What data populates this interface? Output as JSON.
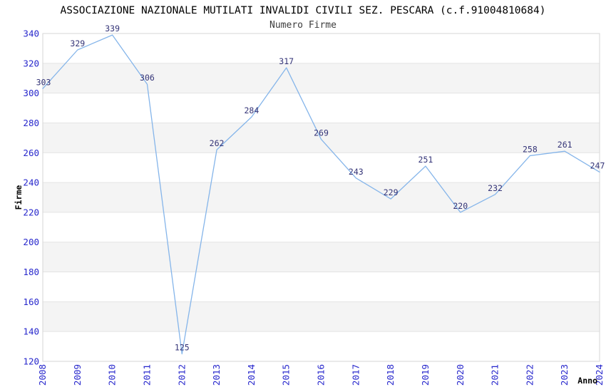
{
  "chart_data": {
    "type": "line",
    "title": "ASSOCIAZIONE NAZIONALE MUTILATI INVALIDI CIVILI SEZ. PESCARA (c.f.91004810684)",
    "subtitle": "Numero Firme",
    "xlabel": "Anno",
    "ylabel": "Firme",
    "categories": [
      "2008",
      "2009",
      "2010",
      "2011",
      "2012",
      "2013",
      "2014",
      "2015",
      "2016",
      "2017",
      "2018",
      "2019",
      "2020",
      "2021",
      "2022",
      "2023",
      "2024"
    ],
    "values": [
      303,
      329,
      339,
      306,
      125,
      262,
      284,
      317,
      269,
      243,
      229,
      251,
      220,
      232,
      258,
      261,
      247
    ],
    "ylim": [
      120,
      340
    ],
    "ytick_step": 20,
    "yticks": [
      120,
      140,
      160,
      180,
      200,
      220,
      240,
      260,
      280,
      300,
      320,
      340
    ],
    "grid": "horizontal-alternating-bands",
    "legend": "none",
    "data_labels_visible": true,
    "colors": {
      "line": "#85b5ea",
      "data_label": "#333377",
      "tick_label": "#2727cc",
      "band": "#f4f4f4",
      "grid_line": "#e3e3e3",
      "border": "#d6d6d6",
      "title": "#000000",
      "subtitle": "#3c3c3c",
      "axis_title": "#000000",
      "background": "#ffffff"
    }
  }
}
